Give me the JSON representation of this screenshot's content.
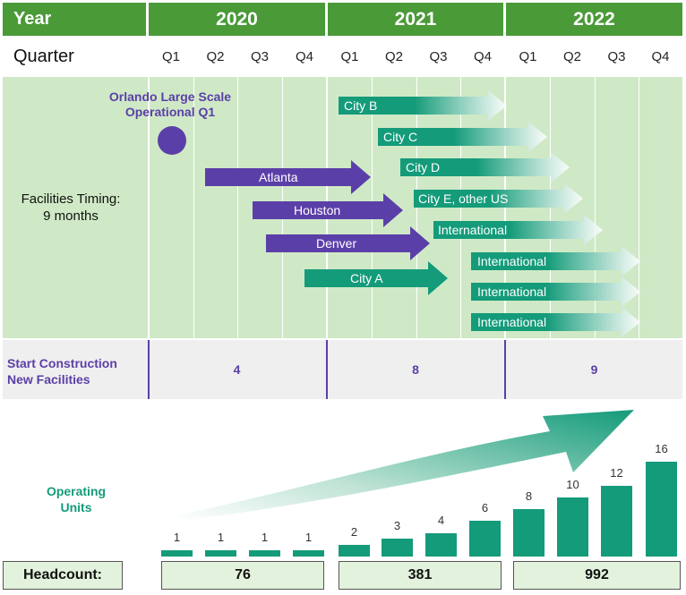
{
  "header": {
    "year_label": "Year",
    "years": [
      "2020",
      "2021",
      "2022"
    ],
    "quarter_label": "Quarter",
    "quarters": [
      "Q1",
      "Q2",
      "Q3",
      "Q4",
      "Q1",
      "Q2",
      "Q3",
      "Q4",
      "Q1",
      "Q2",
      "Q3",
      "Q4"
    ]
  },
  "timeline": {
    "orlando_label_line1": "Orlando Large Scale",
    "orlando_label_line2": "Operational Q1",
    "facilities_line1": "Facilities Timing:",
    "facilities_line2": "9 months",
    "arrows": [
      {
        "label": "City B",
        "color": "green"
      },
      {
        "label": "City C",
        "color": "green"
      },
      {
        "label": "City D",
        "color": "green"
      },
      {
        "label": "Atlanta",
        "color": "purple"
      },
      {
        "label": "City E, other US",
        "color": "green"
      },
      {
        "label": "Houston",
        "color": "purple"
      },
      {
        "label": "International",
        "color": "green"
      },
      {
        "label": "Denver",
        "color": "purple"
      },
      {
        "label": "International",
        "color": "green"
      },
      {
        "label": "City A",
        "color": "green"
      },
      {
        "label": "International",
        "color": "green"
      },
      {
        "label": "International",
        "color": "green"
      }
    ]
  },
  "start_construction": {
    "label_line1": "Start Construction",
    "label_line2": "New Facilities",
    "values": [
      "4",
      "8",
      "9"
    ]
  },
  "operating": {
    "label_line1": "Operating",
    "label_line2": "Units"
  },
  "chart_data": {
    "type": "bar",
    "categories": [
      "2020 Q1",
      "2020 Q2",
      "2020 Q3",
      "2020 Q4",
      "2021 Q1",
      "2021 Q2",
      "2021 Q3",
      "2021 Q4",
      "2022 Q1",
      "2022 Q2",
      "2022 Q3",
      "2022 Q4"
    ],
    "values": [
      1,
      1,
      1,
      1,
      2,
      3,
      4,
      6,
      8,
      10,
      12,
      16
    ],
    "ylim": [
      0,
      16
    ]
  },
  "headcount": {
    "label": "Headcount:",
    "values": [
      "76",
      "381",
      "992"
    ]
  },
  "colors": {
    "green_header": "#4a9a38",
    "timeline_bg": "#cfe9c6",
    "purple": "#5b3fa8",
    "teal": "#149b7a"
  }
}
